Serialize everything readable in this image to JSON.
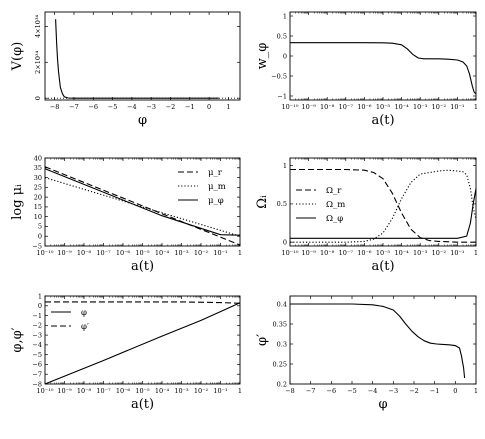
{
  "chart_data": [
    {
      "id": "p1",
      "type": "line",
      "ylabel": "V(φ)",
      "xlabel": "φ",
      "xlim": [
        -8.5,
        1.6
      ],
      "ylim": [
        -1e+33,
        4.8e+34
      ],
      "xlog": false,
      "xticks": [
        -8,
        -7,
        -6,
        -5,
        -4,
        -3,
        -2,
        -1,
        0,
        1
      ],
      "xtick_labels": [
        "−8",
        "−7",
        "−6",
        "−5",
        "−4",
        "−3",
        "−2",
        "−1",
        "0",
        "1"
      ],
      "yticks": [
        0,
        2e+34,
        4e+34
      ],
      "ytick_labels": [
        "0",
        "2×10³⁴",
        "4×10³⁴"
      ],
      "ytick_rotated": true,
      "dotted_hline": 0,
      "series": [
        {
          "style": "solid",
          "x": [
            -7.95,
            -7.9,
            -7.85,
            -7.8,
            -7.75,
            -7.7,
            -7.6,
            -7.5,
            -7.3,
            -7,
            -6,
            -5,
            -4,
            -3,
            -2,
            -1,
            0,
            0.5
          ],
          "y": [
            4.4e+34,
            3.1e+34,
            2.2e+34,
            1.5e+34,
            1e+34,
            6e+33,
            2.5e+33,
            8e+32,
            1e+32,
            0,
            0,
            0,
            0,
            0,
            0,
            0,
            0,
            0
          ]
        }
      ]
    },
    {
      "id": "p2",
      "type": "line",
      "ylabel": "w_φ",
      "xlabel": "a(t)",
      "xlim": [
        -10,
        0
      ],
      "ylim": [
        -1.1,
        1.1
      ],
      "xlog": true,
      "xticks": [
        -10,
        -9,
        -8,
        -7,
        -6,
        -5,
        -4,
        -3,
        -2,
        -1,
        0
      ],
      "xtick_labels": [
        "10⁻¹⁰",
        "10⁻⁹",
        "10⁻⁸",
        "10⁻⁷",
        "10⁻⁶",
        "10⁻⁵",
        "10⁻⁴",
        "10⁻³",
        "10⁻²",
        "10⁻¹",
        "1"
      ],
      "yticks": [
        -1,
        -0.5,
        0,
        0.5,
        1
      ],
      "ytick_labels": [
        "−1",
        "−0.5",
        "0",
        "0.5",
        "1"
      ],
      "series": [
        {
          "style": "solid",
          "x": [
            -10,
            -8,
            -6,
            -5,
            -4.5,
            -4,
            -3.7,
            -3.4,
            -3.1,
            -2.8,
            -2.5,
            -2,
            -1.5,
            -1,
            -0.7,
            -0.5,
            -0.35,
            -0.2,
            -0.1,
            0
          ],
          "y": [
            0.333,
            0.333,
            0.333,
            0.33,
            0.32,
            0.28,
            0.18,
            0.04,
            -0.05,
            -0.07,
            -0.07,
            -0.07,
            -0.08,
            -0.1,
            -0.15,
            -0.25,
            -0.45,
            -0.75,
            -0.9,
            -0.95
          ]
        }
      ]
    },
    {
      "id": "p3",
      "type": "line",
      "ylabel": "log μᵢ",
      "xlabel": "a(t)",
      "xlim": [
        -10,
        0
      ],
      "ylim": [
        -5,
        40
      ],
      "xlog": true,
      "xticks": [
        -10,
        -9,
        -8,
        -7,
        -6,
        -5,
        -4,
        -3,
        -2,
        -1,
        0
      ],
      "xtick_labels": [
        "10⁻¹⁰",
        "10⁻⁹",
        "10⁻⁸",
        "10⁻⁷",
        "10⁻⁶",
        "10⁻⁵",
        "10⁻⁴",
        "10⁻³",
        "10⁻²",
        "10⁻¹",
        "1"
      ],
      "yticks": [
        -5,
        0,
        5,
        10,
        15,
        20,
        25,
        30,
        35,
        40
      ],
      "ytick_labels": [
        "−5",
        "0",
        "5",
        "10",
        "15",
        "20",
        "25",
        "30",
        "35",
        "40"
      ],
      "legend": {
        "position": "top-right",
        "entries": [
          {
            "style": "dashed",
            "label": "μ_r"
          },
          {
            "style": "dotted",
            "label": "μ_m"
          },
          {
            "style": "solid",
            "label": "μ_φ"
          }
        ]
      },
      "series": [
        {
          "name": "μ_r",
          "style": "dashed",
          "x": [
            -10,
            -4,
            0
          ],
          "y": [
            35.5,
            11.5,
            -4.5
          ]
        },
        {
          "name": "μ_m",
          "style": "dotted",
          "x": [
            -10,
            0
          ],
          "y": [
            30,
            0
          ]
        },
        {
          "name": "μ_φ",
          "style": "solid",
          "x": [
            -10,
            -4,
            -1,
            0
          ],
          "y": [
            34.5,
            10.5,
            0.8,
            0.5
          ]
        }
      ]
    },
    {
      "id": "p4",
      "type": "line",
      "ylabel": "Ωᵢ",
      "xlabel": "a(t)",
      "xlim": [
        -10,
        0
      ],
      "ylim": [
        -0.05,
        1.1
      ],
      "xlog": true,
      "xticks": [
        -10,
        -9,
        -8,
        -7,
        -6,
        -5,
        -4,
        -3,
        -2,
        -1,
        0
      ],
      "xtick_labels": [
        "10⁻¹⁰",
        "10⁻⁹",
        "10⁻⁸",
        "10⁻⁷",
        "10⁻⁶",
        "10⁻⁵",
        "10⁻⁴",
        "10⁻³",
        "10⁻²",
        "10⁻¹",
        "1"
      ],
      "yticks": [
        0,
        0.5,
        1
      ],
      "ytick_labels": [
        "0",
        "0.5",
        "1"
      ],
      "legend": {
        "position": "middle-left",
        "entries": [
          {
            "style": "dashed",
            "label": "Ω_r"
          },
          {
            "style": "dotted",
            "label": "Ω_m"
          },
          {
            "style": "solid",
            "label": "Ω_φ"
          }
        ]
      },
      "series": [
        {
          "name": "Ω_r",
          "style": "dashed",
          "x": [
            -10,
            -7,
            -6,
            -5.5,
            -5,
            -4.5,
            -4,
            -3.5,
            -3,
            -2.5,
            -2,
            -1,
            0
          ],
          "y": [
            0.95,
            0.95,
            0.94,
            0.91,
            0.83,
            0.64,
            0.38,
            0.17,
            0.06,
            0.02,
            0.01,
            0,
            0
          ]
        },
        {
          "name": "Ω_m",
          "style": "dotted",
          "x": [
            -10,
            -7,
            -6,
            -5.5,
            -5,
            -4.5,
            -4,
            -3.5,
            -3,
            -2,
            -1.5,
            -1,
            -0.7,
            -0.5,
            -0.3,
            -0.15,
            0
          ],
          "y": [
            0,
            0,
            0.01,
            0.04,
            0.12,
            0.31,
            0.57,
            0.78,
            0.89,
            0.93,
            0.94,
            0.93,
            0.92,
            0.88,
            0.7,
            0.45,
            0.3
          ]
        },
        {
          "name": "Ω_φ",
          "style": "solid",
          "x": [
            -10,
            -3,
            -1,
            -0.5,
            -0.3,
            -0.15,
            0
          ],
          "y": [
            0.05,
            0.05,
            0.05,
            0.08,
            0.25,
            0.5,
            0.7
          ]
        }
      ]
    },
    {
      "id": "p5",
      "type": "line",
      "ylabel": "φ,φ′",
      "xlabel": "a(t)",
      "xlim": [
        -10,
        0
      ],
      "ylim": [
        -8,
        1
      ],
      "xlog": true,
      "xticks": [
        -10,
        -9,
        -8,
        -7,
        -6,
        -5,
        -4,
        -3,
        -2,
        -1,
        0
      ],
      "xtick_labels": [
        "10⁻¹⁰",
        "10⁻⁹",
        "10⁻⁸",
        "10⁻⁷",
        "10⁻⁶",
        "10⁻⁵",
        "10⁻⁴",
        "10⁻³",
        "10⁻²",
        "10⁻¹",
        "1"
      ],
      "yticks": [
        -8,
        -7,
        -6,
        -5,
        -4,
        -3,
        -2,
        -1,
        0,
        1
      ],
      "ytick_labels": [
        "−8",
        "−7",
        "−6",
        "−5",
        "−4",
        "−3",
        "−2",
        "−1",
        "0",
        "1"
      ],
      "legend": {
        "position": "top-left",
        "entries": [
          {
            "style": "solid",
            "label": "φ"
          },
          {
            "style": "dashed",
            "label": "φ′"
          }
        ]
      },
      "series": [
        {
          "name": "φ",
          "style": "solid",
          "x": [
            -10,
            -7,
            -4,
            -3,
            -2,
            -1,
            0
          ],
          "y": [
            -8,
            -5.6,
            -3.1,
            -2.3,
            -1.5,
            -0.6,
            0.3
          ]
        },
        {
          "name": "φ′",
          "style": "dashed",
          "x": [
            -10,
            -3,
            -1,
            0
          ],
          "y": [
            0.4,
            0.4,
            0.32,
            0.25
          ]
        }
      ]
    },
    {
      "id": "p6",
      "type": "line",
      "ylabel": "φ′",
      "xlabel": "φ",
      "xlim": [
        -8,
        1
      ],
      "ylim": [
        0.2,
        0.42
      ],
      "xlog": false,
      "xticks": [
        -8,
        -7,
        -6,
        -5,
        -4,
        -3,
        -2,
        -1,
        0,
        1
      ],
      "xtick_labels": [
        "−8",
        "−7",
        "−6",
        "−5",
        "−4",
        "−3",
        "−2",
        "−1",
        "0",
        "1"
      ],
      "yticks": [
        0.2,
        0.25,
        0.3,
        0.35,
        0.4
      ],
      "ytick_labels": [
        "0.2",
        "0.25",
        "0.3",
        "0.35",
        "0.4"
      ],
      "series": [
        {
          "style": "solid",
          "x": [
            -8,
            -5,
            -4,
            -3.5,
            -3,
            -2.7,
            -2.4,
            -2.1,
            -1.8,
            -1.5,
            -1.2,
            -0.9,
            -0.6,
            -0.3,
            0,
            0.2,
            0.3,
            0.4,
            0.45
          ],
          "y": [
            0.4,
            0.4,
            0.398,
            0.394,
            0.385,
            0.37,
            0.35,
            0.332,
            0.318,
            0.308,
            0.302,
            0.3,
            0.299,
            0.298,
            0.296,
            0.29,
            0.27,
            0.24,
            0.215
          ]
        }
      ]
    }
  ]
}
